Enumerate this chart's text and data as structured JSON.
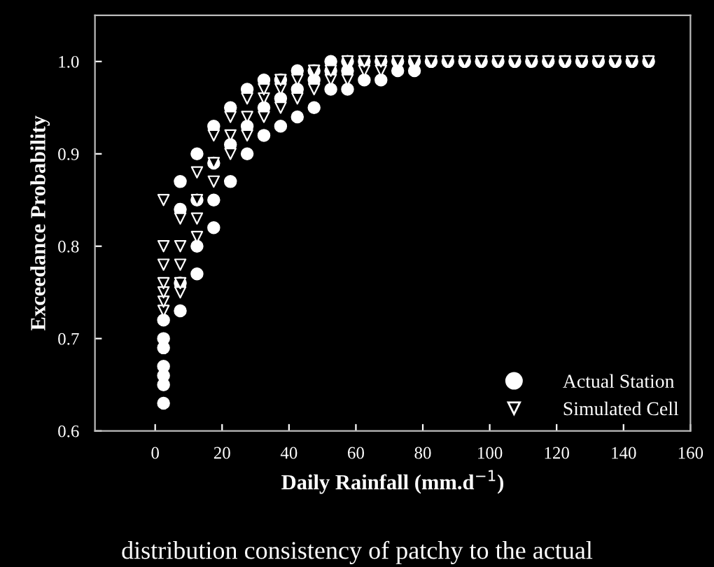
{
  "chart_data": {
    "type": "scatter",
    "xlabel": "Daily Rainfall (mm.d$^{−1}$)",
    "ylabel": "Exceedance Probability",
    "annotations": [
      "distribution consistency of patchy to the actual"
    ],
    "xlim": [
      -18,
      160
    ],
    "xticks": [
      0,
      20,
      40,
      60,
      80,
      100,
      120,
      140,
      160
    ],
    "ylim": [
      0.6,
      1.05
    ],
    "yticks": [
      0.6,
      0.7,
      0.8,
      0.9,
      {
        "value": 1,
        "label": "1.0"
      }
    ],
    "grid": false,
    "legend": "bottom right",
    "series": [
      {
        "name": "Actual Station",
        "color": "#ffffff",
        "marker": "circle",
        "x": [
          2.5,
          2.5,
          2.5,
          2.5,
          2.5,
          2.5,
          2.5,
          7.5,
          7.5,
          7.5,
          7.5,
          12.5,
          12.5,
          12.5,
          12.5,
          17.5,
          17.5,
          17.5,
          17.5,
          22.5,
          22.5,
          22.5,
          27.5,
          27.5,
          27.5,
          32.5,
          32.5,
          32.5,
          37.5,
          37.5,
          37.5,
          42.5,
          42.5,
          42.5,
          47.5,
          47.5,
          47.5,
          52.5,
          52.5,
          52.5,
          57.5,
          57.5,
          57.5,
          62.5,
          62.5,
          67.5,
          67.5,
          72.5,
          72.5,
          77.5,
          77.5,
          82.5,
          87.5,
          92.5,
          97.5,
          102.5,
          107.5,
          112.5,
          117.5,
          122.5,
          127.5,
          132.5,
          137.5,
          142.5,
          147.5
        ],
        "values": [
          0.63,
          0.65,
          0.66,
          0.67,
          0.69,
          0.7,
          0.72,
          0.73,
          0.76,
          0.84,
          0.87,
          0.77,
          0.8,
          0.85,
          0.9,
          0.82,
          0.85,
          0.89,
          0.93,
          0.87,
          0.91,
          0.95,
          0.9,
          0.93,
          0.97,
          0.92,
          0.95,
          0.98,
          0.93,
          0.96,
          0.98,
          0.94,
          0.97,
          0.99,
          0.95,
          0.98,
          0.99,
          0.97,
          0.99,
          1.0,
          0.97,
          0.99,
          1.0,
          0.98,
          1.0,
          0.98,
          1.0,
          0.99,
          1.0,
          0.99,
          1.0,
          1.0,
          1.0,
          1.0,
          1.0,
          1.0,
          1.0,
          1.0,
          1.0,
          1.0,
          1.0,
          1.0,
          1.0,
          1.0,
          1.0
        ]
      },
      {
        "name": "Simulated Cell",
        "color": "#ffffff",
        "marker": "triangle",
        "x": [
          2.5,
          2.5,
          2.5,
          2.5,
          2.5,
          2.5,
          2.5,
          7.5,
          7.5,
          7.5,
          7.5,
          7.5,
          12.5,
          12.5,
          12.5,
          12.5,
          17.5,
          17.5,
          17.5,
          22.5,
          22.5,
          22.5,
          27.5,
          27.5,
          27.5,
          32.5,
          32.5,
          32.5,
          37.5,
          37.5,
          37.5,
          42.5,
          42.5,
          47.5,
          47.5,
          52.5,
          52.5,
          57.5,
          57.5,
          62.5,
          62.5,
          67.5,
          67.5,
          72.5,
          77.5,
          82.5,
          87.5,
          92.5,
          97.5,
          102.5,
          107.5,
          112.5,
          117.5,
          122.5,
          127.5,
          132.5,
          137.5,
          142.5,
          147.5
        ],
        "values": [
          0.73,
          0.74,
          0.75,
          0.76,
          0.78,
          0.8,
          0.85,
          0.75,
          0.76,
          0.78,
          0.8,
          0.83,
          0.81,
          0.83,
          0.85,
          0.88,
          0.87,
          0.89,
          0.92,
          0.9,
          0.92,
          0.94,
          0.92,
          0.94,
          0.96,
          0.94,
          0.96,
          0.97,
          0.95,
          0.97,
          0.98,
          0.96,
          0.98,
          0.97,
          0.99,
          0.98,
          0.99,
          0.98,
          1.0,
          0.99,
          1.0,
          0.99,
          1.0,
          1.0,
          1.0,
          1.0,
          1.0,
          1.0,
          1.0,
          1.0,
          1.0,
          1.0,
          1.0,
          1.0,
          1.0,
          1.0,
          1.0,
          1.0,
          1.0
        ]
      }
    ]
  }
}
